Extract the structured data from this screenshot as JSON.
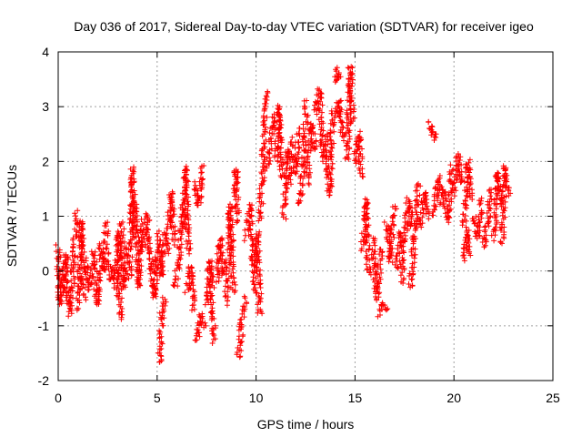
{
  "chart_data": {
    "type": "scatter",
    "title": "Day 036 of 2017, Sidereal Day-to-day VTEC variation (SDTVAR) for receiver igeo",
    "xlabel": "GPS time / hours",
    "ylabel": "SDTVAR / TECUs",
    "xlim": [
      0,
      25
    ],
    "ylim": [
      -2,
      4
    ],
    "xticks": [
      0,
      5,
      10,
      15,
      20,
      25
    ],
    "yticks": [
      -2,
      -1,
      0,
      1,
      2,
      3,
      4
    ],
    "xtick_labels": [
      "0",
      "5",
      "10",
      "15",
      "20",
      "25"
    ],
    "ytick_labels": [
      "-2",
      "-1",
      "0",
      "1",
      "2",
      "3",
      "4"
    ],
    "grid": true,
    "marker": "+",
    "series": [
      {
        "name": "SDTVAR",
        "color": "#ff0000",
        "segments": [
          [
            0.0,
            0.45,
            0.1,
            -0.6,
            0.2,
            0.0
          ],
          [
            0.25,
            -0.4,
            0.4,
            0.3,
            0.55,
            -0.7
          ],
          [
            0.6,
            -0.8,
            0.75,
            0.0,
            0.9,
            1.1
          ],
          [
            1.0,
            -0.7,
            1.15,
            0.9,
            1.3,
            -0.5
          ],
          [
            1.4,
            0.2,
            1.55,
            -0.3,
            1.75,
            0.1
          ],
          [
            1.8,
            0.4,
            1.95,
            -0.6,
            2.05,
            0.0
          ],
          [
            2.1,
            0.5,
            2.3,
            0.0,
            2.45,
            0.9
          ],
          [
            2.5,
            0.3,
            2.7,
            -0.2,
            2.85,
            0.1
          ],
          [
            2.9,
            -0.4,
            3.05,
            0.7,
            3.15,
            -0.9
          ],
          [
            3.2,
            0.9,
            3.35,
            -0.3,
            3.5,
            0.4
          ],
          [
            3.6,
            -0.1,
            3.75,
            1.85,
            3.85,
            0.6
          ],
          [
            3.9,
            1.2,
            4.05,
            -0.3,
            4.2,
            0.9
          ],
          [
            4.3,
            0.4,
            4.5,
            1.0,
            4.65,
            0.0
          ],
          [
            4.7,
            0.2,
            4.85,
            -0.5,
            5.0,
            0.4
          ],
          [
            5.05,
            0.7,
            5.2,
            -0.1,
            5.35,
            0.7
          ],
          [
            5.1,
            -1.7,
            5.25,
            -0.8,
            5.4,
            -0.5
          ],
          [
            5.5,
            0.3,
            5.7,
            1.4,
            5.85,
            0.5
          ],
          [
            5.9,
            -0.3,
            6.1,
            0.2,
            6.25,
            1.2
          ],
          [
            6.3,
            0.8,
            6.45,
            1.9,
            6.6,
            0.3
          ],
          [
            6.5,
            -0.4,
            6.7,
            0.1,
            6.85,
            -0.7
          ],
          [
            6.9,
            1.6,
            7.1,
            1.2,
            7.3,
            1.9
          ],
          [
            7.0,
            -1.3,
            7.2,
            -0.8,
            7.4,
            -1.0
          ],
          [
            7.5,
            -0.6,
            7.7,
            0.2,
            7.9,
            -1.3
          ],
          [
            8.0,
            -0.2,
            8.2,
            0.6,
            8.35,
            -0.1
          ],
          [
            8.5,
            -0.6,
            8.7,
            1.2,
            8.85,
            -0.4
          ],
          [
            8.9,
            1.4,
            9.0,
            1.85,
            9.05,
            0.9
          ],
          [
            9.1,
            -1.6,
            9.3,
            -0.9,
            9.45,
            -0.5
          ],
          [
            9.5,
            0.6,
            9.7,
            1.2,
            9.85,
            0.0
          ],
          [
            9.9,
            -0.4,
            10.05,
            0.7,
            10.2,
            -0.8
          ],
          [
            10.2,
            0.9,
            10.4,
            2.2,
            10.55,
            3.3
          ],
          [
            10.6,
            1.9,
            10.8,
            2.6,
            10.95,
            2.9
          ],
          [
            11.0,
            2.0,
            11.15,
            3.0,
            11.3,
            1.7
          ],
          [
            11.4,
            1.0,
            11.6,
            2.2,
            11.75,
            1.6
          ],
          [
            11.8,
            2.4,
            12.0,
            1.8,
            12.15,
            2.6
          ],
          [
            12.2,
            1.2,
            12.4,
            2.0,
            12.55,
            3.1
          ],
          [
            12.6,
            1.6,
            12.8,
            2.7,
            13.0,
            2.2
          ],
          [
            13.0,
            2.9,
            13.2,
            3.3,
            13.4,
            2.0
          ],
          [
            13.5,
            2.5,
            13.7,
            1.4,
            13.9,
            2.9
          ],
          [
            14.0,
            3.7,
            14.1,
            3.5,
            14.2,
            3.6
          ],
          [
            14.0,
            2.8,
            14.2,
            3.1,
            14.4,
            2.4
          ],
          [
            14.6,
            2.0,
            14.75,
            3.7,
            14.9,
            2.7
          ],
          [
            15.0,
            2.0,
            15.2,
            2.5,
            15.35,
            1.7
          ],
          [
            15.4,
            0.4,
            15.55,
            1.3,
            15.7,
            -0.1
          ],
          [
            15.9,
            0.6,
            16.1,
            -0.5,
            16.3,
            0.4
          ],
          [
            16.2,
            -0.8,
            16.4,
            -0.6,
            16.6,
            -0.7
          ],
          [
            16.6,
            0.9,
            16.8,
            0.2,
            17.0,
            1.2
          ],
          [
            17.1,
            0.0,
            17.3,
            0.7,
            17.45,
            -0.2
          ],
          [
            17.5,
            0.5,
            17.7,
            1.3,
            17.9,
            0.8
          ],
          [
            17.8,
            -0.3,
            18.0,
            0.6,
            18.2,
            1.6
          ],
          [
            18.3,
            0.8,
            18.5,
            1.4,
            18.7,
            1.0
          ],
          [
            18.8,
            2.7,
            18.95,
            2.5,
            19.1,
            2.4
          ],
          [
            19.0,
            1.0,
            19.2,
            1.7,
            19.4,
            1.2
          ],
          [
            19.5,
            1.5,
            19.7,
            0.9,
            19.9,
            1.9
          ],
          [
            20.0,
            1.4,
            20.2,
            2.1,
            20.35,
            1.6
          ],
          [
            20.5,
            0.8,
            20.7,
            2.0,
            20.85,
            1.3
          ],
          [
            20.5,
            0.2,
            20.65,
            0.7,
            20.8,
            0.3
          ],
          [
            21.0,
            1.0,
            21.2,
            0.6,
            21.4,
            1.3
          ],
          [
            21.5,
            0.4,
            21.7,
            0.9,
            21.9,
            1.5
          ],
          [
            22.0,
            0.6,
            22.2,
            1.8,
            22.4,
            1.2
          ],
          [
            22.4,
            0.5,
            22.6,
            1.9,
            22.75,
            1.4
          ]
        ]
      }
    ]
  }
}
